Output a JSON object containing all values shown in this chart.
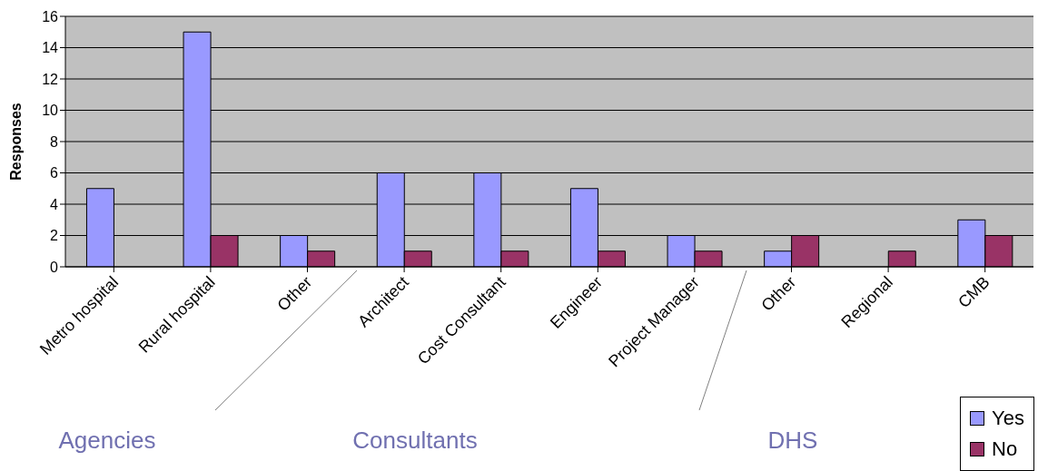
{
  "chart_data": {
    "type": "bar",
    "ylabel": "Responses",
    "categories": [
      "Metro hospital",
      "Rural hospital",
      "Other",
      "Architect",
      "Cost Consultant",
      "Engineer",
      "Project Manager",
      "Other",
      "Regional",
      "CMB"
    ],
    "series": [
      {
        "name": "Yes",
        "color": "#9999ff",
        "values": [
          5,
          15,
          2,
          6,
          6,
          5,
          2,
          1,
          null,
          3
        ]
      },
      {
        "name": "No",
        "color": "#993366",
        "values": [
          null,
          2,
          1,
          1,
          1,
          1,
          1,
          2,
          1,
          2
        ]
      }
    ],
    "ylim": [
      0,
      16
    ],
    "yticks": [
      0,
      2,
      4,
      6,
      8,
      10,
      12,
      14,
      16
    ],
    "grid": "y",
    "legend": "bottom right",
    "annotations": [
      "Agencies",
      "Consultants",
      "DHS"
    ]
  }
}
